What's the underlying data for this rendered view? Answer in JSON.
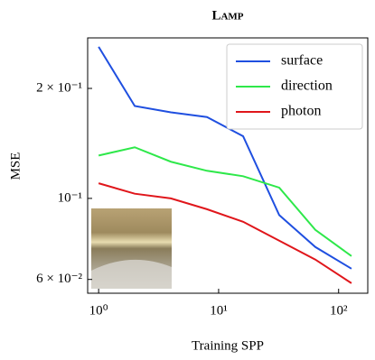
{
  "chart_data": {
    "type": "line",
    "title": "Lamp",
    "x_label": "Training SPP",
    "y_label": "MSE",
    "x": [
      1,
      2,
      4,
      8,
      16,
      32,
      64,
      128
    ],
    "series": [
      {
        "name": "surface",
        "color": "#1f4fe0",
        "values": [
          0.26,
          0.179,
          0.172,
          0.167,
          0.148,
          0.09,
          0.0736,
          0.0642
        ]
      },
      {
        "name": "direction",
        "color": "#2ee84a",
        "values": [
          0.131,
          0.138,
          0.126,
          0.119,
          0.115,
          0.107,
          0.082,
          0.0695
        ]
      },
      {
        "name": "photon",
        "color": "#e0161b",
        "values": [
          0.11,
          0.103,
          0.1,
          0.0934,
          0.0863,
          0.0766,
          0.068,
          0.0586
        ]
      }
    ],
    "x_scale": "log",
    "y_scale": "log",
    "xlim": [
      0.81,
      175
    ],
    "ylim": [
      0.055,
      0.275
    ],
    "xticks": [
      {
        "value": 1,
        "label": "10⁰"
      },
      {
        "value": 10,
        "label": "10¹"
      },
      {
        "value": 100,
        "label": "10²"
      }
    ],
    "yticks": [
      {
        "value": 0.06,
        "label": "6 × 10⁻²"
      },
      {
        "value": 0.1,
        "label": "10⁻¹"
      },
      {
        "value": 0.2,
        "label": "2 × 10⁻¹"
      }
    ],
    "legend": "upper right",
    "grid": false
  }
}
